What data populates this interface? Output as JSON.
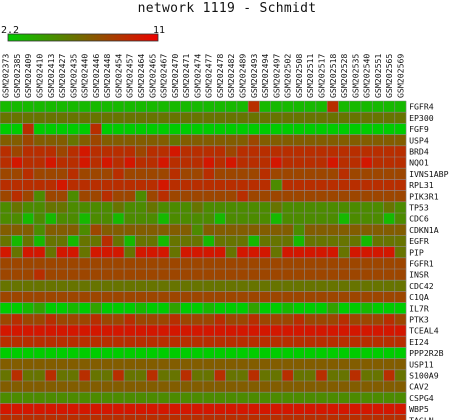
{
  "chart_data": {
    "type": "heatmap",
    "title": "network 1119 - Schmidt",
    "scale": {
      "min": 2.2,
      "max": 11,
      "min_label": "2.2",
      "max_label": "11",
      "colors": [
        "#00cc00",
        "#ee0000"
      ]
    },
    "columns": [
      "GSM202373",
      "GSM202385",
      "GSM202409",
      "GSM202410",
      "GSM202413",
      "GSM202427",
      "GSM202435",
      "GSM202440",
      "GSM202446",
      "GSM202448",
      "GSM202454",
      "GSM202457",
      "GSM202464",
      "GSM202465",
      "GSM202467",
      "GSM202470",
      "GSM202471",
      "GSM202474",
      "GSM202477",
      "GSM202478",
      "GSM202482",
      "GSM202489",
      "GSM202493",
      "GSM202494",
      "GSM202497",
      "GSM202502",
      "GSM202508",
      "GSM202511",
      "GSM202517",
      "GSM202518",
      "GSM202528",
      "GSM202535",
      "GSM202540",
      "GSM202551",
      "GSM202565",
      "GSM202569"
    ],
    "rows": [
      "FGFR4",
      "EP300",
      "FGF9",
      "USP4",
      "BRD4",
      "NQO1",
      "IVNS1ABP",
      "RPL31",
      "PIK3R1",
      "TP53",
      "CDC6",
      "CDKN1A",
      "EGFR",
      "PIP",
      "FGFR1",
      "INSR",
      "CDC42",
      "C1QA",
      "IL7R",
      "PTK3",
      "TCEAL4",
      "EI24",
      "PPP2R2B",
      "USP11",
      "S100A9",
      "CAV2",
      "CSPG4",
      "WBP5",
      "TAGLN"
    ],
    "values": [
      [
        3,
        3,
        3,
        3,
        3,
        3,
        3,
        3,
        3,
        3,
        3,
        3,
        3,
        3,
        3,
        3,
        3,
        3,
        3,
        3,
        3,
        3,
        9,
        3,
        3,
        3,
        3,
        3,
        3,
        9,
        3,
        3,
        3,
        3,
        3,
        3
      ],
      [
        6,
        6,
        6,
        6,
        6,
        6,
        6,
        6,
        6,
        6,
        6,
        6,
        6,
        6,
        6,
        6,
        6,
        6,
        6,
        6,
        6,
        6,
        6,
        6,
        6,
        6,
        6,
        6,
        6,
        6,
        6,
        6,
        6,
        6,
        6,
        6
      ],
      [
        2.2,
        2.2,
        9,
        2.2,
        2.2,
        2.2,
        2.2,
        2.2,
        9,
        2.2,
        2.2,
        2.2,
        2.2,
        2.2,
        2.2,
        2.2,
        2.2,
        2.2,
        2.2,
        2.2,
        2.2,
        2.2,
        2.2,
        2.2,
        2.2,
        2.2,
        2.2,
        2.2,
        2.2,
        2.2,
        2.2,
        2.2,
        2.2,
        2.2,
        2.2,
        2.2
      ],
      [
        7,
        7,
        8,
        7,
        7,
        7,
        6,
        7,
        8,
        7,
        7,
        7,
        7,
        7,
        7,
        6,
        7,
        7,
        7,
        7,
        7,
        7,
        8,
        7,
        7,
        7,
        7,
        7,
        7,
        7,
        7,
        7,
        7,
        7,
        7,
        7
      ],
      [
        9,
        8,
        9,
        9,
        9,
        8,
        9,
        10,
        9,
        9,
        9,
        9,
        8,
        9,
        9,
        10,
        9,
        9,
        9,
        9,
        8,
        9,
        9,
        9,
        9,
        9,
        9,
        9,
        9,
        9,
        9,
        9,
        9,
        9,
        9,
        9
      ],
      [
        9,
        10,
        9,
        9,
        10,
        9,
        9,
        10,
        9,
        10,
        9,
        10,
        9,
        9,
        10,
        9,
        9,
        9,
        10,
        9,
        10,
        9,
        9,
        9,
        10,
        9,
        9,
        9,
        9,
        10,
        9,
        9,
        10,
        9,
        9,
        9
      ],
      [
        8,
        8,
        9,
        8,
        8,
        8,
        9,
        8,
        8,
        8,
        9,
        8,
        8,
        8,
        8,
        9,
        8,
        8,
        9,
        8,
        8,
        8,
        8,
        9,
        8,
        8,
        8,
        8,
        8,
        8,
        9,
        8,
        8,
        8,
        8,
        8
      ],
      [
        9,
        9,
        9,
        9,
        9,
        10,
        9,
        9,
        9,
        9,
        9,
        9,
        9,
        9,
        10,
        9,
        9,
        9,
        9,
        9,
        9,
        9,
        9,
        9,
        5,
        9,
        9,
        9,
        9,
        9,
        9,
        9,
        9,
        9,
        9,
        9
      ],
      [
        8,
        9,
        8,
        5,
        8,
        8,
        5,
        8,
        8,
        9,
        8,
        8,
        5,
        8,
        9,
        8,
        8,
        8,
        8,
        8,
        8,
        9,
        8,
        8,
        8,
        8,
        8,
        8,
        8,
        8,
        8,
        8,
        8,
        8,
        8,
        8
      ],
      [
        5,
        6,
        5,
        5,
        6,
        6,
        5,
        5,
        5,
        5,
        6,
        5,
        5,
        6,
        5,
        5,
        5,
        6,
        5,
        5,
        5,
        5,
        5,
        5,
        6,
        5,
        5,
        5,
        5,
        5,
        5,
        5,
        5,
        5,
        6,
        5
      ],
      [
        5,
        5,
        3,
        5,
        3,
        5,
        5,
        3,
        5,
        5,
        3,
        5,
        5,
        5,
        3,
        5,
        5,
        5,
        5,
        3,
        5,
        5,
        5,
        5,
        3,
        5,
        5,
        5,
        5,
        5,
        3,
        5,
        5,
        5,
        3,
        5
      ],
      [
        7,
        7,
        7,
        5,
        7,
        7,
        7,
        5,
        8,
        7,
        7,
        7,
        7,
        7,
        7,
        7,
        7,
        5,
        7,
        7,
        7,
        7,
        7,
        7,
        7,
        7,
        5,
        7,
        7,
        7,
        7,
        7,
        7,
        7,
        7,
        7
      ],
      [
        6,
        3,
        6,
        3,
        6,
        6,
        3,
        6,
        6,
        9,
        6,
        3,
        6,
        6,
        3,
        6,
        6,
        6,
        3,
        6,
        6,
        6,
        3,
        6,
        6,
        6,
        3,
        6,
        6,
        6,
        6,
        6,
        3,
        6,
        6,
        6
      ],
      [
        10,
        6,
        10,
        10,
        6,
        10,
        10,
        6,
        10,
        10,
        10,
        6,
        10,
        10,
        10,
        6,
        10,
        10,
        10,
        10,
        6,
        10,
        10,
        10,
        6,
        10,
        10,
        10,
        10,
        10,
        6,
        10,
        10,
        10,
        10,
        6
      ],
      [
        8,
        8,
        8,
        8,
        8,
        8,
        8,
        8,
        8,
        8,
        8,
        8,
        8,
        8,
        8,
        8,
        8,
        8,
        8,
        8,
        8,
        8,
        8,
        8,
        8,
        8,
        8,
        8,
        8,
        8,
        8,
        8,
        8,
        8,
        8,
        8
      ],
      [
        8,
        8,
        8,
        9,
        8,
        8,
        8,
        8,
        8,
        8,
        8,
        8,
        8,
        8,
        8,
        8,
        8,
        8,
        8,
        8,
        8,
        8,
        8,
        8,
        8,
        8,
        8,
        8,
        8,
        8,
        8,
        8,
        8,
        8,
        8,
        8
      ],
      [
        6,
        6,
        6,
        6,
        6,
        6,
        6,
        6,
        6,
        6,
        6,
        6,
        6,
        6,
        6,
        6,
        6,
        6,
        6,
        6,
        6,
        6,
        6,
        6,
        6,
        6,
        6,
        6,
        6,
        6,
        6,
        6,
        6,
        6,
        6,
        6
      ],
      [
        8,
        8,
        8,
        8,
        8,
        8,
        8,
        8,
        8,
        8,
        8,
        8,
        8,
        8,
        8,
        8,
        8,
        8,
        8,
        8,
        8,
        8,
        8,
        8,
        8,
        8,
        8,
        8,
        8,
        8,
        8,
        8,
        8,
        8,
        8,
        8
      ],
      [
        2.2,
        2.2,
        3,
        4,
        2.2,
        2.2,
        3,
        2.2,
        4,
        2.2,
        2.2,
        2.2,
        3,
        2.2,
        2.2,
        4,
        2.2,
        2.2,
        3,
        2.2,
        2.2,
        2.2,
        4,
        2.2,
        2.2,
        3,
        2.2,
        2.2,
        2.2,
        4,
        2.2,
        2.2,
        3,
        2.2,
        2.2,
        2.2
      ],
      [
        8,
        9,
        8,
        8,
        9,
        8,
        8,
        8,
        9,
        8,
        8,
        9,
        8,
        8,
        8,
        9,
        8,
        8,
        8,
        9,
        8,
        8,
        9,
        8,
        8,
        8,
        9,
        8,
        8,
        8,
        9,
        8,
        8,
        8,
        9,
        8
      ],
      [
        10,
        10,
        10,
        10,
        10,
        10,
        10,
        10,
        10,
        10,
        10,
        10,
        10,
        10,
        10,
        10,
        10,
        10,
        10,
        10,
        10,
        10,
        10,
        10,
        10,
        10,
        10,
        10,
        10,
        10,
        10,
        10,
        10,
        10,
        10,
        10
      ],
      [
        9,
        9,
        9,
        9,
        9,
        9,
        9,
        9,
        9,
        9,
        9,
        9,
        9,
        9,
        9,
        9,
        9,
        9,
        9,
        9,
        9,
        9,
        9,
        9,
        9,
        9,
        9,
        9,
        9,
        9,
        9,
        9,
        9,
        9,
        9,
        9
      ],
      [
        2.2,
        2.2,
        2.2,
        2.2,
        2.2,
        2.2,
        2.2,
        2.2,
        2.2,
        2.2,
        2.2,
        2.2,
        2.2,
        2.2,
        2.2,
        2.2,
        2.2,
        2.2,
        2.2,
        2.2,
        2.2,
        2.2,
        2.2,
        2.2,
        2.2,
        2.2,
        2.2,
        2.2,
        2.2,
        2.2,
        2.2,
        2.2,
        2.2,
        2.2,
        2.2,
        2.2
      ],
      [
        7,
        7,
        7,
        7,
        7,
        7,
        7,
        7,
        7,
        7,
        7,
        7,
        7,
        7,
        7,
        7,
        7,
        7,
        7,
        7,
        7,
        7,
        7,
        7,
        7,
        7,
        7,
        7,
        7,
        7,
        7,
        7,
        7,
        7,
        7,
        7
      ],
      [
        6,
        9,
        6,
        6,
        9,
        6,
        6,
        9,
        6,
        6,
        9,
        6,
        6,
        9,
        6,
        6,
        9,
        6,
        6,
        9,
        6,
        6,
        9,
        6,
        6,
        9,
        6,
        6,
        9,
        6,
        6,
        9,
        6,
        6,
        9,
        6
      ],
      [
        7,
        7,
        7,
        7,
        7,
        7,
        7,
        7,
        7,
        7,
        7,
        7,
        7,
        7,
        7,
        7,
        7,
        7,
        7,
        7,
        7,
        7,
        7,
        7,
        7,
        7,
        7,
        7,
        7,
        7,
        7,
        7,
        7,
        7,
        7,
        7
      ],
      [
        5,
        5,
        5,
        5,
        5,
        5,
        5,
        5,
        5,
        5,
        5,
        5,
        5,
        5,
        5,
        5,
        5,
        5,
        5,
        5,
        5,
        5,
        5,
        5,
        5,
        5,
        5,
        5,
        5,
        5,
        5,
        5,
        5,
        5,
        5,
        5
      ],
      [
        10,
        10,
        10,
        10,
        10,
        10,
        10,
        10,
        10,
        10,
        10,
        10,
        10,
        10,
        10,
        10,
        10,
        10,
        10,
        10,
        10,
        10,
        10,
        10,
        10,
        10,
        10,
        10,
        10,
        10,
        10,
        10,
        10,
        10,
        10,
        10
      ],
      [
        9,
        9,
        9,
        9,
        9,
        9,
        9,
        9,
        9,
        9,
        9,
        9,
        9,
        9,
        9,
        9,
        9,
        9,
        9,
        9,
        9,
        9,
        9,
        9,
        9,
        9,
        9,
        9,
        9,
        9,
        9,
        9,
        9,
        9,
        9,
        9
      ]
    ]
  }
}
